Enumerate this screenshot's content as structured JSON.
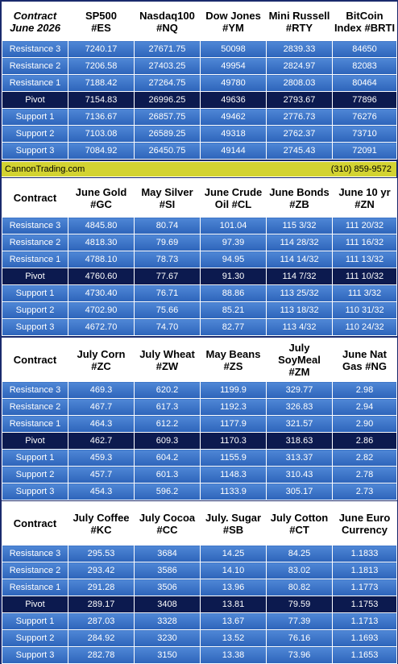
{
  "row_labels": [
    "Resistance 3",
    "Resistance 2",
    "Resistance 1",
    "Pivot",
    "Support 1",
    "Support 2",
    "Support 3"
  ],
  "footer": {
    "company": "CannonTrading.com",
    "phone": "(310) 859-9572"
  },
  "sections": [
    {
      "header_first": [
        "Contract",
        "June 2026"
      ],
      "columns": [
        [
          "SP500",
          "#ES"
        ],
        [
          "Nasdaq100",
          "#NQ"
        ],
        [
          "Dow Jones",
          "#YM"
        ],
        [
          "Mini Russell",
          "#RTY"
        ],
        [
          "BitCoin",
          "Index #BRTI"
        ]
      ],
      "rows": [
        [
          "7240.17",
          "27671.75",
          "50098",
          "2839.33",
          "84650"
        ],
        [
          "7206.58",
          "27403.25",
          "49954",
          "2824.97",
          "82083"
        ],
        [
          "7188.42",
          "27264.75",
          "49780",
          "2808.03",
          "80464"
        ],
        [
          "7154.83",
          "26996.25",
          "49636",
          "2793.67",
          "77896"
        ],
        [
          "7136.67",
          "26857.75",
          "49462",
          "2776.73",
          "76276"
        ],
        [
          "7103.08",
          "26589.25",
          "49318",
          "2762.37",
          "73710"
        ],
        [
          "7084.92",
          "26450.75",
          "49144",
          "2745.43",
          "72091"
        ]
      ]
    },
    {
      "header_first": [
        "Contract"
      ],
      "columns": [
        [
          "June Gold",
          "#GC"
        ],
        [
          "May Silver",
          "#SI"
        ],
        [
          "June Crude",
          "Oil #CL"
        ],
        [
          "June Bonds",
          "#ZB"
        ],
        [
          "June 10 yr",
          "#ZN"
        ]
      ],
      "rows": [
        [
          "4845.80",
          "80.74",
          "101.04",
          "115  3/32",
          "111 20/32"
        ],
        [
          "4818.30",
          "79.69",
          "97.39",
          "114 28/32",
          "111 16/32"
        ],
        [
          "4788.10",
          "78.73",
          "94.95",
          "114 14/32",
          "111 13/32"
        ],
        [
          "4760.60",
          "77.67",
          "91.30",
          "114  7/32",
          "111 10/32"
        ],
        [
          "4730.40",
          "76.71",
          "88.86",
          "113 25/32",
          "111  3/32"
        ],
        [
          "4702.90",
          "75.66",
          "85.21",
          "113 18/32",
          "110 31/32"
        ],
        [
          "4672.70",
          "74.70",
          "82.77",
          "113  4/32",
          "110 24/32"
        ]
      ]
    },
    {
      "header_first": [
        "Contract"
      ],
      "columns": [
        [
          "July Corn",
          "#ZC"
        ],
        [
          "July  Wheat",
          "#ZW"
        ],
        [
          "May Beans",
          "#ZS"
        ],
        [
          "July",
          "SoyMeal",
          "#ZM"
        ],
        [
          "June Nat",
          "Gas #NG"
        ]
      ],
      "rows": [
        [
          "469.3",
          "620.2",
          "1199.9",
          "329.77",
          "2.98"
        ],
        [
          "467.7",
          "617.3",
          "1192.3",
          "326.83",
          "2.94"
        ],
        [
          "464.3",
          "612.2",
          "1177.9",
          "321.57",
          "2.90"
        ],
        [
          "462.7",
          "609.3",
          "1170.3",
          "318.63",
          "2.86"
        ],
        [
          "459.3",
          "604.2",
          "1155.9",
          "313.37",
          "2.82"
        ],
        [
          "457.7",
          "601.3",
          "1148.3",
          "310.43",
          "2.78"
        ],
        [
          "454.3",
          "596.2",
          "1133.9",
          "305.17",
          "2.73"
        ]
      ]
    },
    {
      "header_first": [
        "Contract"
      ],
      "columns": [
        [
          "July Coffee",
          "#KC"
        ],
        [
          "July Cocoa",
          "#CC"
        ],
        [
          "July. Sugar",
          "#SB"
        ],
        [
          "July Cotton",
          "#CT"
        ],
        [
          "June Euro",
          "Currency"
        ]
      ],
      "rows": [
        [
          "295.53",
          "3684",
          "14.25",
          "84.25",
          "1.1833"
        ],
        [
          "293.42",
          "3586",
          "14.10",
          "83.02",
          "1.1813"
        ],
        [
          "291.28",
          "3506",
          "13.96",
          "80.82",
          "1.1773"
        ],
        [
          "289.17",
          "3408",
          "13.81",
          "79.59",
          "1.1753"
        ],
        [
          "287.03",
          "3328",
          "13.67",
          "77.39",
          "1.1713"
        ],
        [
          "284.92",
          "3230",
          "13.52",
          "76.16",
          "1.1693"
        ],
        [
          "282.78",
          "3150",
          "13.38",
          "73.96",
          "1.1653"
        ]
      ]
    }
  ]
}
